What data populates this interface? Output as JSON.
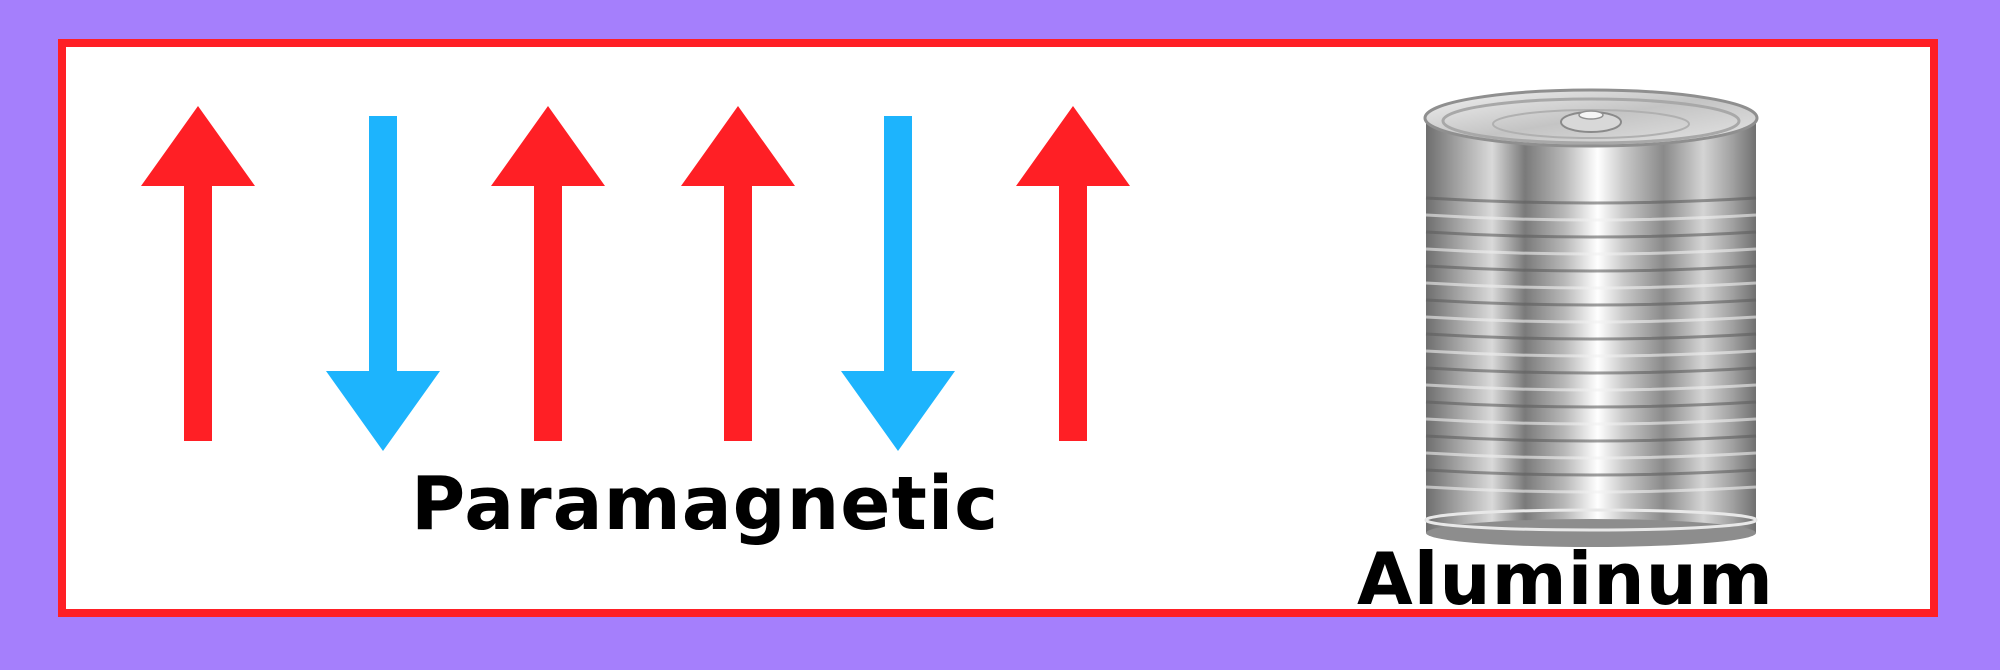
{
  "labels": {
    "paramagnetic": "Paramagnetic",
    "aluminum": "Aluminum"
  },
  "arrows": [
    {
      "direction": "up",
      "color": "#ff1f25"
    },
    {
      "direction": "down",
      "color": "#1db4fd"
    },
    {
      "direction": "up",
      "color": "#ff1f25"
    },
    {
      "direction": "up",
      "color": "#ff1f25"
    },
    {
      "direction": "down",
      "color": "#1db4fd"
    },
    {
      "direction": "up",
      "color": "#ff1f25"
    }
  ],
  "colors": {
    "background": "#a57ffc",
    "border": "#ff1f25",
    "panel": "#ffffff"
  },
  "image": "aluminum-can-icon"
}
